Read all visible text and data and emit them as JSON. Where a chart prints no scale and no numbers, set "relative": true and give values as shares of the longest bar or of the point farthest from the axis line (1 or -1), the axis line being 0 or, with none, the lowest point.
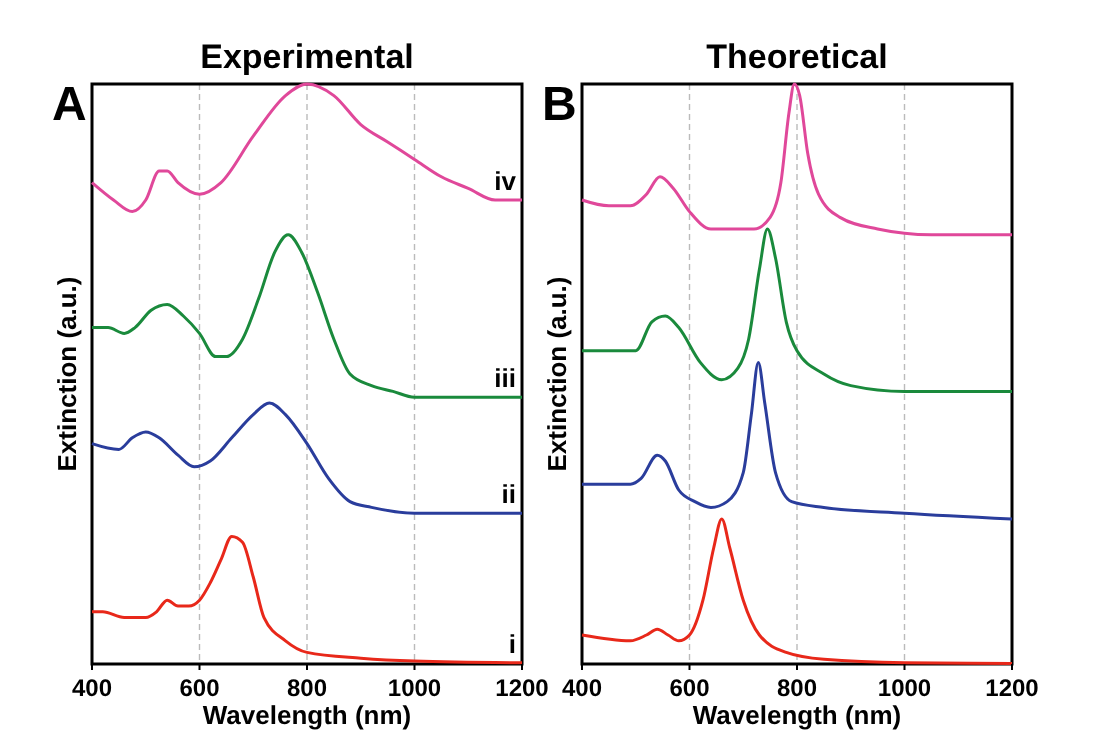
{
  "chart_data": [
    {
      "type": "line",
      "title": "Experimental",
      "xlabel": "Wavelength (nm)",
      "ylabel": "Extinction (a.u.)",
      "annotations": [
        "A"
      ],
      "relative": true,
      "xlim": [
        400,
        1200
      ],
      "xticks": [
        400,
        600,
        800,
        1000,
        1200
      ],
      "grid": "x",
      "legend": false,
      "series": [
        {
          "name": "iv",
          "color": "#e0489a",
          "x": [
            400,
            440,
            475,
            500,
            525,
            540,
            560,
            600,
            640,
            700,
            760,
            800,
            850,
            900,
            950,
            1000,
            1050,
            1100,
            1150,
            1200
          ],
          "values": [
            0.83,
            0.8,
            0.78,
            0.8,
            0.85,
            0.85,
            0.83,
            0.81,
            0.83,
            0.91,
            0.98,
            1,
            0.98,
            0.93,
            0.9,
            0.87,
            0.84,
            0.82,
            0.8,
            0.8
          ]
        },
        {
          "name": "iii",
          "color": "#1a8a3c",
          "x": [
            400,
            430,
            460,
            480,
            510,
            540,
            570,
            600,
            630,
            650,
            680,
            710,
            740,
            765,
            790,
            820,
            850,
            880,
            920,
            960,
            1000,
            1100,
            1200
          ],
          "values": [
            0.58,
            0.58,
            0.57,
            0.58,
            0.61,
            0.62,
            0.6,
            0.57,
            0.53,
            0.53,
            0.56,
            0.63,
            0.71,
            0.74,
            0.71,
            0.64,
            0.56,
            0.5,
            0.48,
            0.47,
            0.46,
            0.46,
            0.46
          ]
        },
        {
          "name": "ii",
          "color": "#2a3d9c",
          "x": [
            400,
            450,
            475,
            500,
            525,
            560,
            590,
            620,
            660,
            700,
            730,
            760,
            800,
            840,
            880,
            920,
            1000,
            1200
          ],
          "values": [
            0.38,
            0.37,
            0.39,
            0.4,
            0.39,
            0.36,
            0.34,
            0.35,
            0.39,
            0.43,
            0.45,
            0.43,
            0.38,
            0.32,
            0.28,
            0.27,
            0.26,
            0.26
          ]
        },
        {
          "name": "i",
          "color": "#e8281a",
          "x": [
            400,
            420,
            460,
            500,
            520,
            540,
            560,
            580,
            600,
            620,
            640,
            660,
            680,
            700,
            720,
            760,
            800,
            900,
            1000,
            1200
          ],
          "values": [
            0.09,
            0.09,
            0.08,
            0.08,
            0.09,
            0.11,
            0.1,
            0.1,
            0.11,
            0.14,
            0.18,
            0.22,
            0.21,
            0.15,
            0.08,
            0.04,
            0.02,
            0.01,
            0.005,
            0.002
          ]
        }
      ]
    },
    {
      "type": "line",
      "title": "Theoretical",
      "xlabel": "Wavelength (nm)",
      "ylabel": "Extinction (a.u.)",
      "annotations": [
        "B"
      ],
      "relative": true,
      "xlim": [
        400,
        1200
      ],
      "xticks": [
        400,
        600,
        800,
        1000,
        1200
      ],
      "grid": "x",
      "legend": false,
      "series": [
        {
          "color": "#e0489a",
          "x": [
            400,
            450,
            490,
            520,
            545,
            570,
            600,
            640,
            680,
            720,
            750,
            770,
            785,
            795,
            805,
            820,
            840,
            880,
            950,
            1050,
            1200
          ],
          "values": [
            0.8,
            0.79,
            0.79,
            0.81,
            0.84,
            0.82,
            0.78,
            0.75,
            0.75,
            0.75,
            0.77,
            0.83,
            0.95,
            1,
            0.98,
            0.88,
            0.81,
            0.77,
            0.75,
            0.74,
            0.74
          ]
        },
        {
          "color": "#1a8a3c",
          "x": [
            400,
            480,
            500,
            530,
            555,
            580,
            620,
            660,
            690,
            710,
            730,
            745,
            760,
            780,
            800,
            850,
            900,
            1000,
            1200
          ],
          "values": [
            0.54,
            0.54,
            0.54,
            0.59,
            0.6,
            0.58,
            0.52,
            0.49,
            0.51,
            0.56,
            0.68,
            0.75,
            0.7,
            0.59,
            0.54,
            0.5,
            0.48,
            0.47,
            0.47
          ]
        },
        {
          "color": "#2a3d9c",
          "x": [
            400,
            490,
            510,
            540,
            555,
            580,
            610,
            640,
            670,
            700,
            715,
            728,
            740,
            760,
            790,
            850,
            1000,
            1200
          ],
          "values": [
            0.31,
            0.31,
            0.32,
            0.36,
            0.35,
            0.3,
            0.28,
            0.27,
            0.28,
            0.33,
            0.43,
            0.52,
            0.45,
            0.33,
            0.28,
            0.27,
            0.26,
            0.25
          ]
        },
        {
          "color": "#e8281a",
          "x": [
            400,
            490,
            520,
            540,
            560,
            580,
            600,
            625,
            645,
            660,
            675,
            700,
            730,
            780,
            850,
            1000,
            1200
          ],
          "values": [
            0.05,
            0.04,
            0.05,
            0.06,
            0.05,
            0.04,
            0.05,
            0.11,
            0.2,
            0.25,
            0.2,
            0.11,
            0.05,
            0.02,
            0.008,
            0.002,
            0.001
          ]
        }
      ]
    }
  ]
}
